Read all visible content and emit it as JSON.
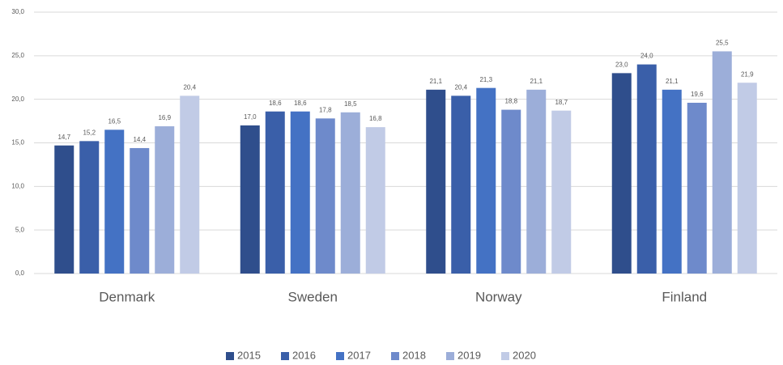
{
  "chart_data": {
    "type": "bar",
    "categories": [
      "Denmark",
      "Sweden",
      "Norway",
      "Finland"
    ],
    "series": [
      {
        "name": "2015",
        "color": "#2f4e8c",
        "values": [
          14.7,
          17.0,
          21.1,
          23.0
        ],
        "value_labels": [
          "14,7",
          "17,0",
          "21,1",
          "23,0"
        ]
      },
      {
        "name": "2016",
        "color": "#3a5fa9",
        "values": [
          15.2,
          18.6,
          20.4,
          24.0
        ],
        "value_labels": [
          "15,2",
          "18,6",
          "20,4",
          "24,0"
        ]
      },
      {
        "name": "2017",
        "color": "#4472c4",
        "values": [
          16.5,
          18.6,
          21.3,
          21.1
        ],
        "value_labels": [
          "16,5",
          "18,6",
          "21,3",
          "21,1"
        ]
      },
      {
        "name": "2018",
        "color": "#6e8acb",
        "values": [
          14.4,
          17.8,
          18.8,
          19.6
        ],
        "value_labels": [
          "14,4",
          "17,8",
          "18,8",
          "19,6"
        ]
      },
      {
        "name": "2019",
        "color": "#9caed9",
        "values": [
          16.9,
          18.5,
          21.1,
          25.5
        ],
        "value_labels": [
          "16,9",
          "18,5",
          "21,1",
          "25,5"
        ]
      },
      {
        "name": "2020",
        "color": "#c1cbe6",
        "values": [
          20.4,
          16.8,
          18.7,
          21.9
        ],
        "value_labels": [
          "20,4",
          "16,8",
          "18,7",
          "21,9"
        ]
      }
    ],
    "ylim": [
      0,
      30
    ],
    "yticks": [
      {
        "value": 0,
        "label": "0,0"
      },
      {
        "value": 5,
        "label": "5,0"
      },
      {
        "value": 10,
        "label": "10,0"
      },
      {
        "value": 15,
        "label": "15,0"
      },
      {
        "value": 20,
        "label": "20,0"
      },
      {
        "value": 25,
        "label": "25,0"
      },
      {
        "value": 30,
        "label": "30,0"
      }
    ],
    "grid": true,
    "legend": "bottom"
  }
}
